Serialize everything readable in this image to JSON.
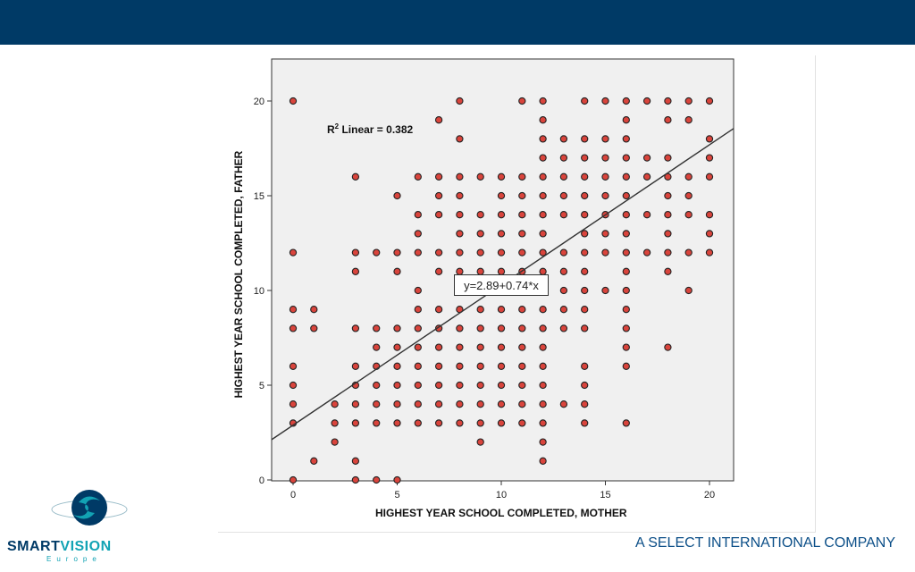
{
  "colors": {
    "header": "#003a66",
    "plot_bg": "#f0f0f0",
    "point_fill": "#d9443c",
    "point_stroke": "#222222",
    "fit_line": "#333333",
    "logo_dark": "#003a66",
    "logo_teal": "#12a3b4"
  },
  "annotations": {
    "r2_prefix": "R",
    "r2_sup": "2",
    "r2_text": " Linear = 0.382",
    "equation": "y=2.89+0.74*x"
  },
  "logo": {
    "word1": "SMART",
    "word2": "VISION",
    "sub": "Europe",
    "icon": "swirl-logo-icon"
  },
  "footer": {
    "tagline": "A SELECT INTERNATIONAL COMPANY"
  },
  "chart_data": {
    "type": "scatter",
    "title": "",
    "xlabel": "HIGHEST YEAR SCHOOL COMPLETED, MOTHER",
    "ylabel": "HIGHEST YEAR SCHOOL COMPLETED, FATHER",
    "xlim": [
      -1,
      21
    ],
    "ylim": [
      -0.2,
      22
    ],
    "xticks": [
      0,
      5,
      10,
      15,
      20
    ],
    "yticks": [
      0,
      5,
      10,
      15,
      20
    ],
    "grid": false,
    "fit_line": {
      "intercept": 2.89,
      "slope": 0.74,
      "r2": 0.382
    },
    "series": [
      {
        "points": [
          [
            0,
            20
          ],
          [
            0,
            12
          ],
          [
            0,
            9
          ],
          [
            0,
            8
          ],
          [
            0,
            6
          ],
          [
            0,
            5
          ],
          [
            0,
            4
          ],
          [
            0,
            3
          ],
          [
            0,
            0
          ],
          [
            1,
            9
          ],
          [
            1,
            8
          ],
          [
            1,
            1
          ],
          [
            2,
            4
          ],
          [
            2,
            3
          ],
          [
            2,
            2
          ],
          [
            3,
            16
          ],
          [
            3,
            12
          ],
          [
            3,
            11
          ],
          [
            3,
            8
          ],
          [
            3,
            6
          ],
          [
            3,
            5
          ],
          [
            3,
            4
          ],
          [
            3,
            3
          ],
          [
            3,
            1
          ],
          [
            3,
            0
          ],
          [
            4,
            12
          ],
          [
            4,
            8
          ],
          [
            4,
            7
          ],
          [
            4,
            6
          ],
          [
            4,
            5
          ],
          [
            4,
            4
          ],
          [
            4,
            3
          ],
          [
            4,
            0
          ],
          [
            5,
            15
          ],
          [
            5,
            12
          ],
          [
            5,
            11
          ],
          [
            5,
            8
          ],
          [
            5,
            7
          ],
          [
            5,
            6
          ],
          [
            5,
            5
          ],
          [
            5,
            4
          ],
          [
            5,
            3
          ],
          [
            5,
            0
          ],
          [
            6,
            16
          ],
          [
            6,
            14
          ],
          [
            6,
            13
          ],
          [
            6,
            12
          ],
          [
            6,
            10
          ],
          [
            6,
            9
          ],
          [
            6,
            8
          ],
          [
            6,
            7
          ],
          [
            6,
            6
          ],
          [
            6,
            5
          ],
          [
            6,
            4
          ],
          [
            6,
            3
          ],
          [
            7,
            19
          ],
          [
            7,
            16
          ],
          [
            7,
            15
          ],
          [
            7,
            14
          ],
          [
            7,
            12
          ],
          [
            7,
            11
          ],
          [
            7,
            9
          ],
          [
            7,
            8
          ],
          [
            7,
            7
          ],
          [
            7,
            6
          ],
          [
            7,
            5
          ],
          [
            7,
            4
          ],
          [
            7,
            3
          ],
          [
            8,
            20
          ],
          [
            8,
            18
          ],
          [
            8,
            16
          ],
          [
            8,
            15
          ],
          [
            8,
            14
          ],
          [
            8,
            13
          ],
          [
            8,
            12
          ],
          [
            8,
            11
          ],
          [
            8,
            9
          ],
          [
            8,
            8
          ],
          [
            8,
            7
          ],
          [
            8,
            6
          ],
          [
            8,
            5
          ],
          [
            8,
            4
          ],
          [
            8,
            3
          ],
          [
            9,
            16
          ],
          [
            9,
            14
          ],
          [
            9,
            13
          ],
          [
            9,
            12
          ],
          [
            9,
            11
          ],
          [
            9,
            10
          ],
          [
            9,
            9
          ],
          [
            9,
            8
          ],
          [
            9,
            7
          ],
          [
            9,
            6
          ],
          [
            9,
            5
          ],
          [
            9,
            4
          ],
          [
            9,
            3
          ],
          [
            9,
            2
          ],
          [
            10,
            16
          ],
          [
            10,
            15
          ],
          [
            10,
            14
          ],
          [
            10,
            13
          ],
          [
            10,
            12
          ],
          [
            10,
            11
          ],
          [
            10,
            10
          ],
          [
            10,
            9
          ],
          [
            10,
            8
          ],
          [
            10,
            7
          ],
          [
            10,
            6
          ],
          [
            10,
            5
          ],
          [
            10,
            4
          ],
          [
            10,
            3
          ],
          [
            11,
            20
          ],
          [
            11,
            16
          ],
          [
            11,
            15
          ],
          [
            11,
            14
          ],
          [
            11,
            13
          ],
          [
            11,
            12
          ],
          [
            11,
            11
          ],
          [
            11,
            10
          ],
          [
            11,
            9
          ],
          [
            11,
            8
          ],
          [
            11,
            7
          ],
          [
            11,
            6
          ],
          [
            11,
            5
          ],
          [
            11,
            4
          ],
          [
            11,
            3
          ],
          [
            12,
            20
          ],
          [
            12,
            19
          ],
          [
            12,
            18
          ],
          [
            12,
            17
          ],
          [
            12,
            16
          ],
          [
            12,
            15
          ],
          [
            12,
            14
          ],
          [
            12,
            13
          ],
          [
            12,
            12
          ],
          [
            12,
            11
          ],
          [
            12,
            10
          ],
          [
            12,
            9
          ],
          [
            12,
            8
          ],
          [
            12,
            7
          ],
          [
            12,
            6
          ],
          [
            12,
            5
          ],
          [
            12,
            4
          ],
          [
            12,
            3
          ],
          [
            12,
            2
          ],
          [
            12,
            1
          ],
          [
            13,
            18
          ],
          [
            13,
            17
          ],
          [
            13,
            16
          ],
          [
            13,
            15
          ],
          [
            13,
            14
          ],
          [
            13,
            12
          ],
          [
            13,
            11
          ],
          [
            13,
            10
          ],
          [
            13,
            9
          ],
          [
            13,
            8
          ],
          [
            13,
            4
          ],
          [
            14,
            20
          ],
          [
            14,
            18
          ],
          [
            14,
            17
          ],
          [
            14,
            16
          ],
          [
            14,
            15
          ],
          [
            14,
            14
          ],
          [
            14,
            13
          ],
          [
            14,
            12
          ],
          [
            14,
            11
          ],
          [
            14,
            10
          ],
          [
            14,
            9
          ],
          [
            14,
            8
          ],
          [
            14,
            6
          ],
          [
            14,
            5
          ],
          [
            14,
            4
          ],
          [
            14,
            3
          ],
          [
            15,
            20
          ],
          [
            15,
            18
          ],
          [
            15,
            17
          ],
          [
            15,
            16
          ],
          [
            15,
            15
          ],
          [
            15,
            14
          ],
          [
            15,
            13
          ],
          [
            15,
            12
          ],
          [
            15,
            10
          ],
          [
            16,
            20
          ],
          [
            16,
            19
          ],
          [
            16,
            18
          ],
          [
            16,
            17
          ],
          [
            16,
            16
          ],
          [
            16,
            15
          ],
          [
            16,
            14
          ],
          [
            16,
            13
          ],
          [
            16,
            12
          ],
          [
            16,
            11
          ],
          [
            16,
            10
          ],
          [
            16,
            9
          ],
          [
            16,
            8
          ],
          [
            16,
            7
          ],
          [
            16,
            6
          ],
          [
            16,
            3
          ],
          [
            17,
            20
          ],
          [
            17,
            17
          ],
          [
            17,
            16
          ],
          [
            17,
            14
          ],
          [
            17,
            12
          ],
          [
            18,
            20
          ],
          [
            18,
            19
          ],
          [
            18,
            17
          ],
          [
            18,
            16
          ],
          [
            18,
            15
          ],
          [
            18,
            14
          ],
          [
            18,
            13
          ],
          [
            18,
            12
          ],
          [
            18,
            11
          ],
          [
            18,
            7
          ],
          [
            19,
            20
          ],
          [
            19,
            19
          ],
          [
            19,
            16
          ],
          [
            19,
            15
          ],
          [
            19,
            14
          ],
          [
            19,
            12
          ],
          [
            19,
            10
          ],
          [
            20,
            20
          ],
          [
            20,
            18
          ],
          [
            20,
            17
          ],
          [
            20,
            16
          ],
          [
            20,
            14
          ],
          [
            20,
            13
          ],
          [
            20,
            12
          ]
        ]
      }
    ]
  }
}
